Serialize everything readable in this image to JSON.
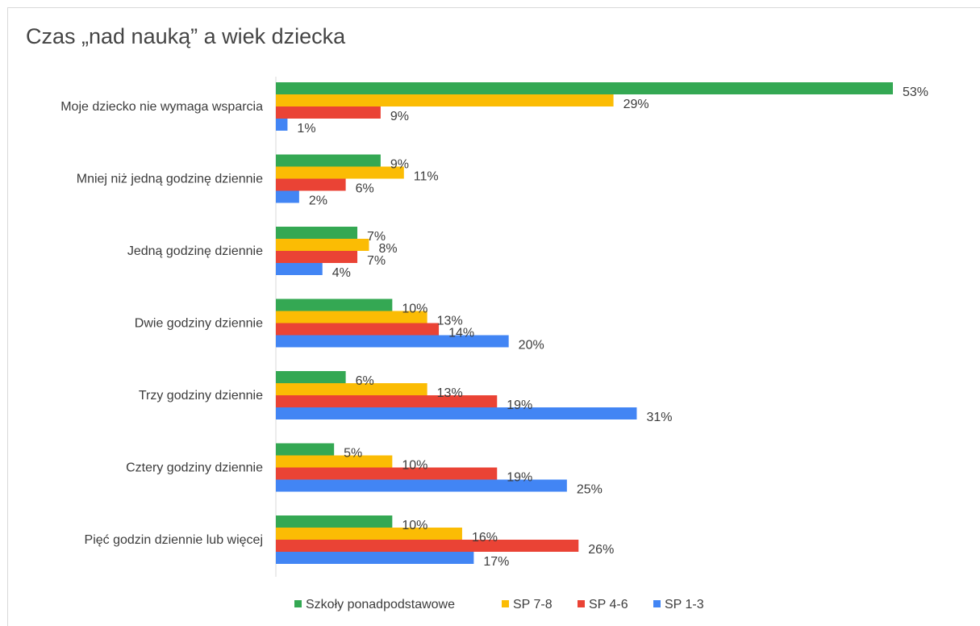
{
  "chart_data": {
    "type": "bar",
    "orientation": "horizontal",
    "title": "Czas „nad nauką” a wiek dziecka",
    "categories": [
      "Moje dziecko nie wymaga wsparcia",
      "Mniej niż jedną godzinę dziennie",
      "Jedną godzinę dziennie",
      "Dwie godziny dziennie",
      "Trzy godziny dziennie",
      "Cztery godziny dziennie",
      "Pięć godzin dziennie lub więcej"
    ],
    "series": [
      {
        "name": "Szkoły ponadpodstawowe",
        "color": "#34a853",
        "values": [
          53,
          9,
          7,
          10,
          6,
          5,
          10
        ]
      },
      {
        "name": "SP 7-8",
        "color": "#fbbc04",
        "values": [
          29,
          11,
          8,
          13,
          13,
          10,
          16
        ]
      },
      {
        "name": "SP 4-6",
        "color": "#ea4335",
        "values": [
          9,
          6,
          7,
          14,
          19,
          19,
          26
        ]
      },
      {
        "name": "SP 1-3",
        "color": "#4285f4",
        "values": [
          1,
          2,
          4,
          20,
          31,
          25,
          17
        ]
      }
    ],
    "value_suffix": "%",
    "xlim": [
      0,
      53
    ],
    "grid": false,
    "legend_position": "bottom"
  }
}
